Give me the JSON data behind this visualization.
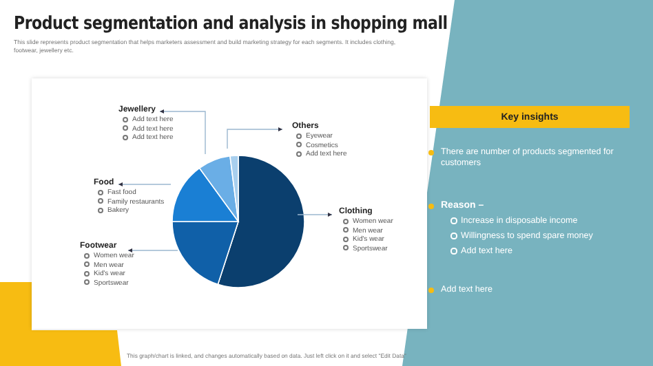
{
  "chart_data": [
    {
      "type": "pie",
      "title": "Product segmentation and analysis in shopping mall",
      "subtitle": "This slide represents product segmentation that helps marketers assessment and build marketing strategy for each segments. It includes clothing, footwear, jewellery etc.",
      "categories": [
        "Clothing",
        "Footwear",
        "Food",
        "Jewellery",
        "Others"
      ],
      "values": [
        55,
        20,
        15,
        8,
        2
      ],
      "colors": [
        "#0b3f6e",
        "#1060a8",
        "#1a7fd4",
        "#6aaee6",
        "#a8cfee"
      ],
      "legend": false,
      "annotations": [
        "Women wear\nMen wear\nKid's wear\nSportswear",
        "Women wear\nMen wear\nKid's wear\nSportswear",
        "Fast food\nFamily restaurants\nBakery",
        "Add text here\nAdd text here\nAdd text here",
        "Eyewear\nCosmetics\nAdd text here",
        "This graph/chart is linked, and changes automatically based on data. Just left click on it and select \"Edit Data\""
      ]
    },
    {
      "type": "other",
      "title": "Key insights",
      "annotations": [
        "There are number of products segmented for customers",
        "Reason –",
        "Increase in disposable income",
        "Willingness to spend spare money",
        "Add text here",
        "Add text here"
      ]
    }
  ]
}
